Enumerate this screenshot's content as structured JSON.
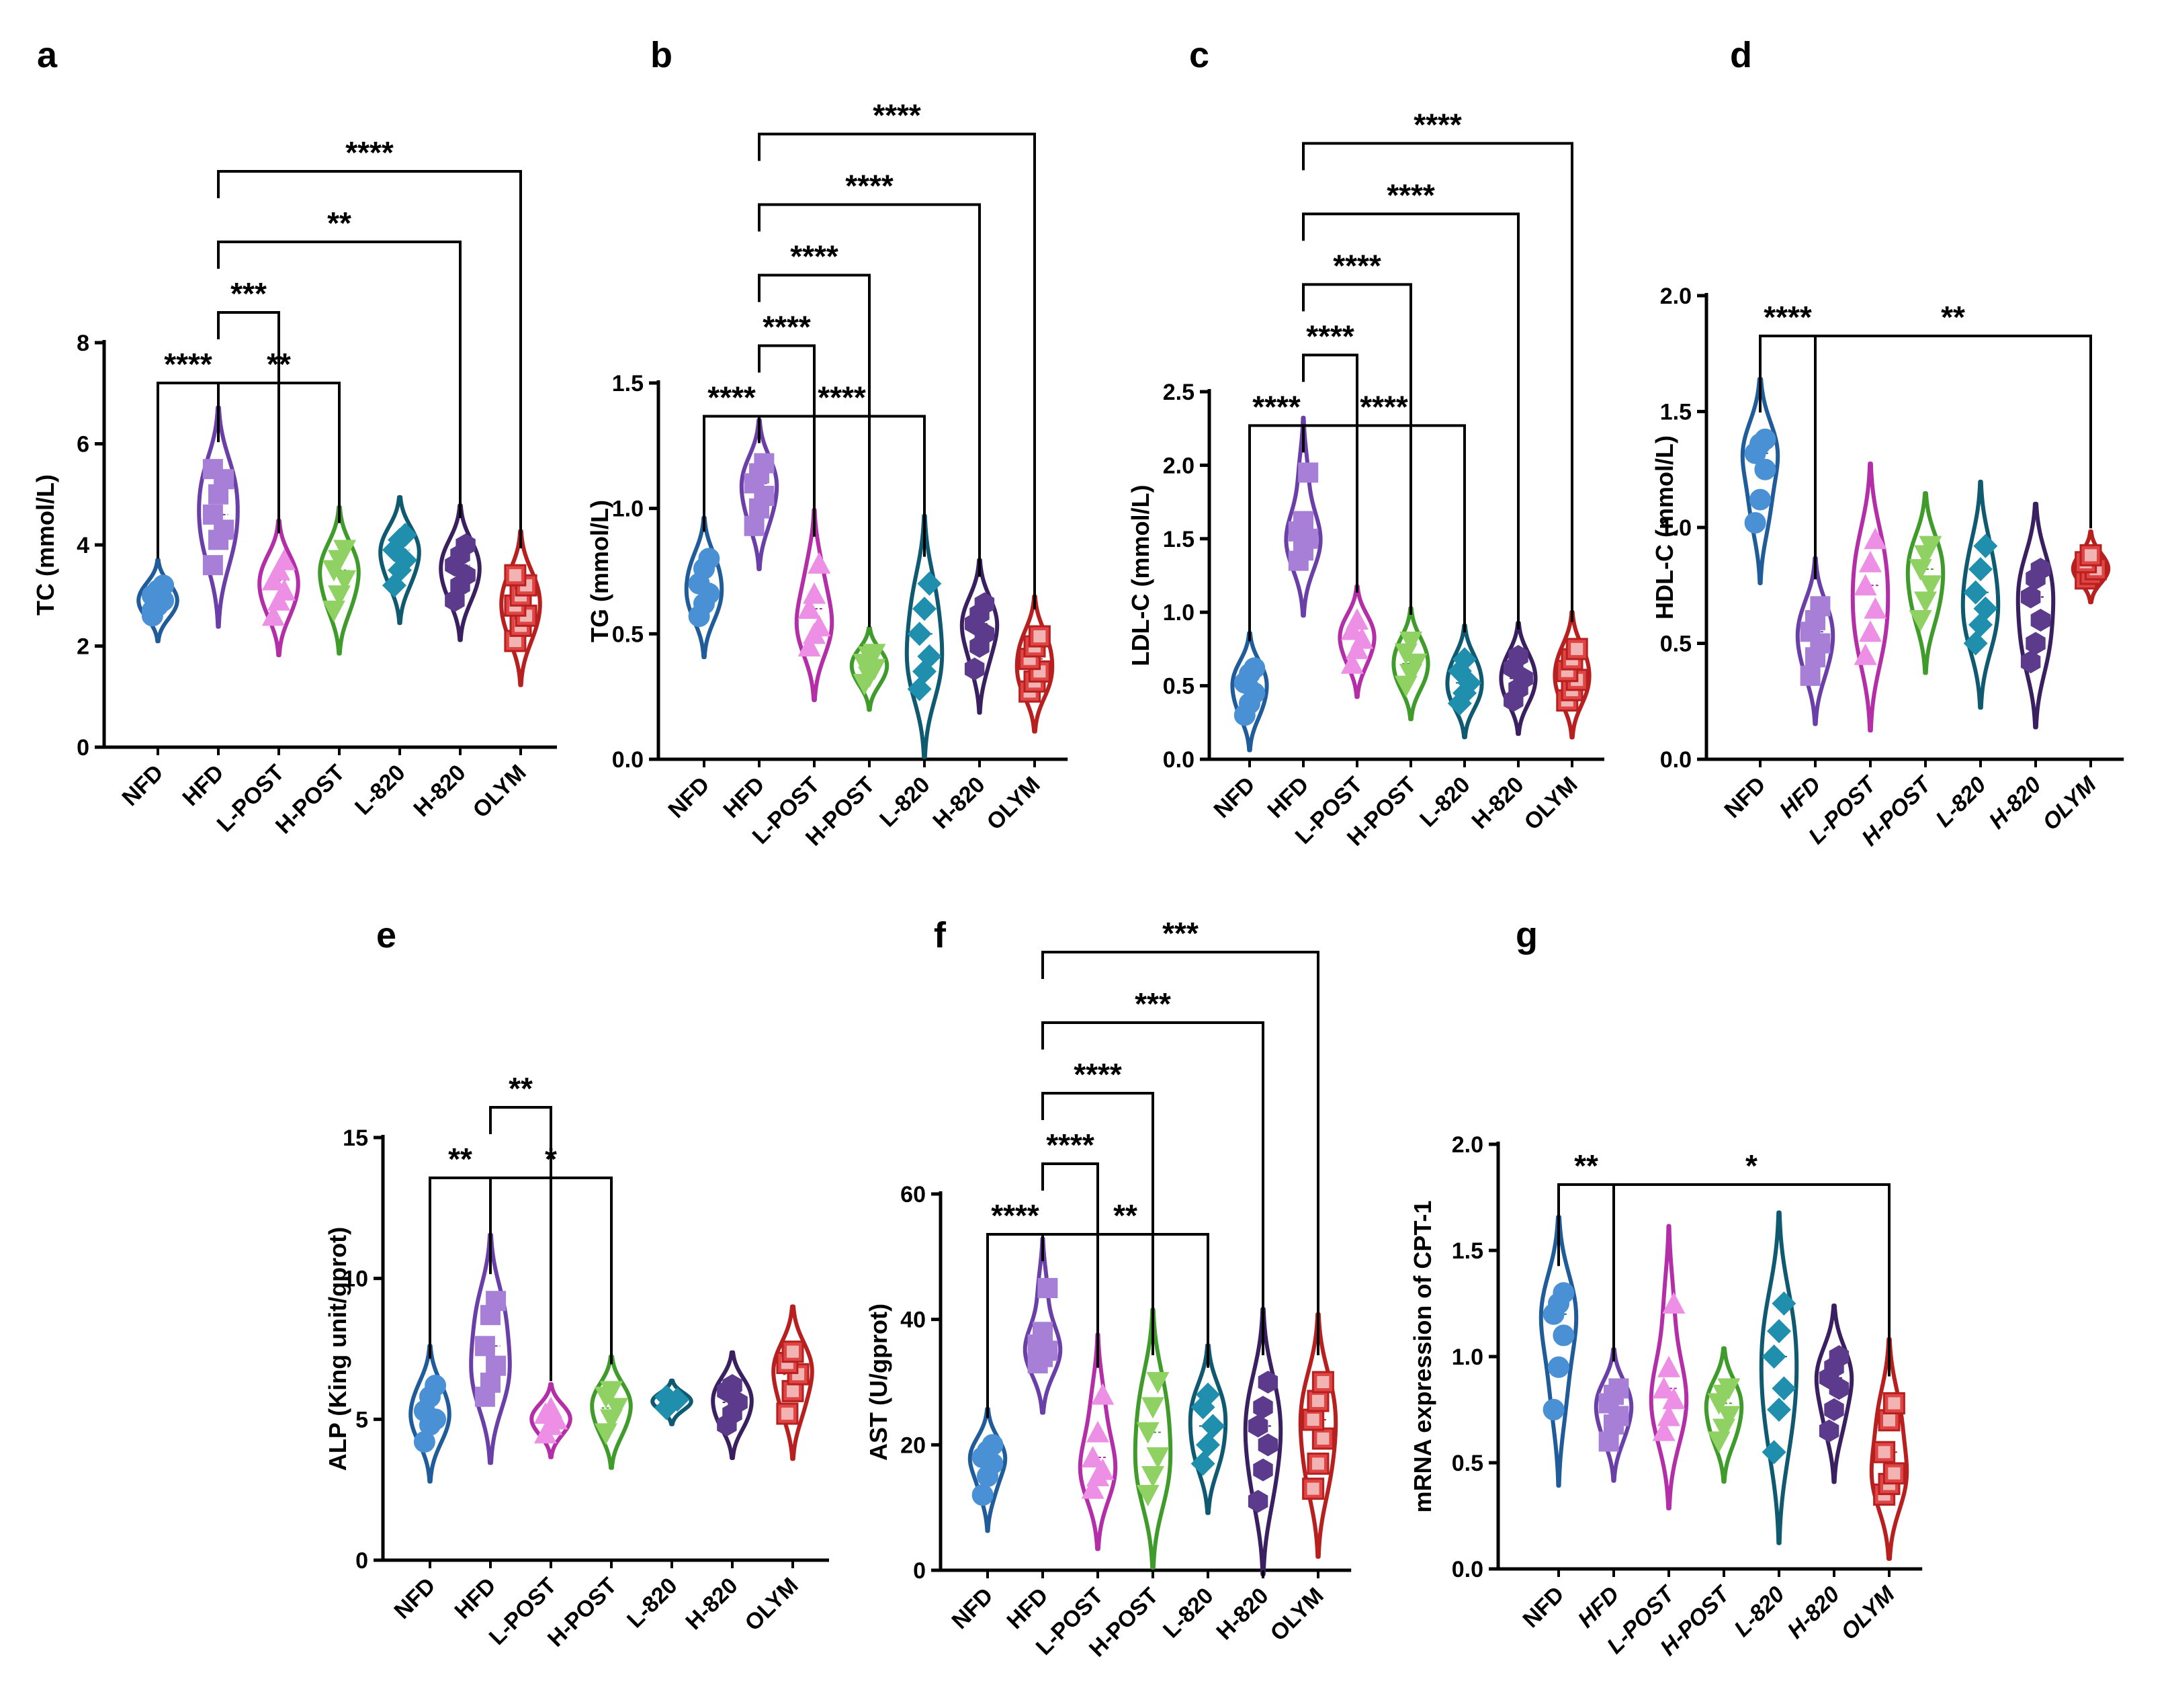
{
  "chart_data": [
    {
      "panel": "a",
      "type": "violin",
      "ylabel": "TC (mmol/L)",
      "ylim": [
        0,
        8
      ],
      "yticks": [
        0,
        2,
        4,
        6,
        8
      ],
      "tick_labels": [
        "0",
        "2",
        "4",
        "6",
        "8"
      ],
      "categories": [
        "NFD",
        "HFD",
        "L-POST",
        "H-POST",
        "L-820",
        "H-820",
        "OLYM"
      ],
      "italic_categories": false,
      "series": [
        {
          "name": "NFD",
          "values": [
            2.6,
            2.8,
            2.9,
            3.0,
            3.1,
            3.2,
            2.7
          ]
        },
        {
          "name": "HFD",
          "values": [
            3.6,
            4.1,
            4.3,
            4.6,
            5.0,
            5.3,
            5.5
          ]
        },
        {
          "name": "L-POST",
          "values": [
            2.6,
            2.9,
            3.1,
            3.3,
            3.5,
            3.7
          ]
        },
        {
          "name": "H-POST",
          "values": [
            2.7,
            3.0,
            3.3,
            3.5,
            3.7,
            3.9
          ]
        },
        {
          "name": "L-820",
          "values": [
            3.2,
            3.5,
            3.7,
            3.9,
            4.1,
            4.2
          ]
        },
        {
          "name": "H-820",
          "values": [
            2.9,
            3.2,
            3.4,
            3.6,
            3.8,
            4.0
          ]
        },
        {
          "name": "OLYM",
          "values": [
            2.1,
            2.4,
            2.6,
            2.8,
            3.0,
            3.2,
            3.4
          ]
        }
      ],
      "comparisons": [
        {
          "from": "NFD",
          "to": "HFD",
          "label": "****"
        },
        {
          "from": "HFD",
          "to": "H-POST",
          "label": "**"
        },
        {
          "from": "HFD",
          "to": "L-POST",
          "label": "***"
        },
        {
          "from": "HFD",
          "to": "H-820",
          "label": "**"
        },
        {
          "from": "HFD",
          "to": "OLYM",
          "label": "****"
        }
      ]
    },
    {
      "panel": "b",
      "type": "violin",
      "ylabel": "TG (mmol/L)",
      "ylim": [
        0,
        1.5
      ],
      "yticks": [
        0,
        0.5,
        1.0,
        1.5
      ],
      "tick_labels": [
        "0.0",
        "0.5",
        "1.0",
        "1.5"
      ],
      "categories": [
        "NFD",
        "HFD",
        "L-POST",
        "H-POST",
        "L-820",
        "H-820",
        "OLYM"
      ],
      "italic_categories": false,
      "series": [
        {
          "name": "NFD",
          "values": [
            0.57,
            0.62,
            0.66,
            0.7,
            0.76,
            0.8
          ]
        },
        {
          "name": "HFD",
          "values": [
            0.93,
            1.0,
            1.05,
            1.1,
            1.14,
            1.18
          ]
        },
        {
          "name": "L-POST",
          "values": [
            0.45,
            0.5,
            0.53,
            0.6,
            0.66,
            0.78
          ]
        },
        {
          "name": "H-POST",
          "values": [
            0.3,
            0.33,
            0.36,
            0.38,
            0.41,
            0.42
          ]
        },
        {
          "name": "L-820",
          "values": [
            0.28,
            0.35,
            0.41,
            0.5,
            0.6,
            0.7
          ]
        },
        {
          "name": "H-820",
          "values": [
            0.36,
            0.45,
            0.5,
            0.54,
            0.58,
            0.62
          ]
        },
        {
          "name": "OLYM",
          "values": [
            0.27,
            0.31,
            0.35,
            0.4,
            0.45,
            0.49
          ]
        }
      ],
      "comparisons": [
        {
          "from": "NFD",
          "to": "HFD",
          "label": "****"
        },
        {
          "from": "HFD",
          "to": "L-820",
          "label": "****"
        },
        {
          "from": "HFD",
          "to": "L-POST",
          "label": "****"
        },
        {
          "from": "HFD",
          "to": "H-POST",
          "label": "****"
        },
        {
          "from": "HFD",
          "to": "H-820",
          "label": "****"
        },
        {
          "from": "HFD",
          "to": "OLYM",
          "label": "****"
        }
      ]
    },
    {
      "panel": "c",
      "type": "violin",
      "ylabel": "LDL-C (mmol/L)",
      "ylim": [
        0,
        2.5
      ],
      "yticks": [
        0,
        0.5,
        1.0,
        1.5,
        2.0,
        2.5
      ],
      "tick_labels": [
        "0.0",
        "0.5",
        "1.0",
        "1.5",
        "2.0",
        "2.5"
      ],
      "categories": [
        "NFD",
        "HFD",
        "L-POST",
        "H-POST",
        "L-820",
        "H-820",
        "OLYM"
      ],
      "italic_categories": false,
      "series": [
        {
          "name": "NFD",
          "values": [
            0.3,
            0.38,
            0.45,
            0.52,
            0.58,
            0.62
          ]
        },
        {
          "name": "HFD",
          "values": [
            1.35,
            1.42,
            1.5,
            1.55,
            1.62,
            1.95
          ]
        },
        {
          "name": "L-POST",
          "values": [
            0.65,
            0.75,
            0.82,
            0.88,
            0.95
          ]
        },
        {
          "name": "H-POST",
          "values": [
            0.5,
            0.58,
            0.65,
            0.72,
            0.8
          ]
        },
        {
          "name": "L-820",
          "values": [
            0.38,
            0.45,
            0.52,
            0.6,
            0.68
          ]
        },
        {
          "name": "H-820",
          "values": [
            0.4,
            0.48,
            0.55,
            0.62,
            0.7
          ]
        },
        {
          "name": "OLYM",
          "values": [
            0.4,
            0.47,
            0.54,
            0.6,
            0.68,
            0.75
          ]
        }
      ],
      "comparisons": [
        {
          "from": "NFD",
          "to": "HFD",
          "label": "****"
        },
        {
          "from": "HFD",
          "to": "L-820",
          "label": "****"
        },
        {
          "from": "HFD",
          "to": "L-POST",
          "label": "****"
        },
        {
          "from": "HFD",
          "to": "H-POST",
          "label": "****"
        },
        {
          "from": "HFD",
          "to": "H-820",
          "label": "****"
        },
        {
          "from": "HFD",
          "to": "OLYM",
          "label": "****"
        }
      ]
    },
    {
      "panel": "d",
      "type": "violin",
      "ylabel": "HDL-C (mmol/L)",
      "ylim": [
        0,
        2.0
      ],
      "yticks": [
        0,
        0.5,
        1.0,
        1.5,
        2.0
      ],
      "tick_labels": [
        "0.0",
        "0.5",
        "1.0",
        "1.5",
        "2.0"
      ],
      "categories": [
        "NFD",
        "HFD",
        "L-POST",
        "H-POST",
        "L-820",
        "H-820",
        "OLYM"
      ],
      "italic_categories": true,
      "series": [
        {
          "name": "NFD",
          "values": [
            1.02,
            1.12,
            1.25,
            1.32,
            1.36,
            1.38
          ]
        },
        {
          "name": "HFD",
          "values": [
            0.36,
            0.44,
            0.5,
            0.55,
            0.6,
            0.66
          ]
        },
        {
          "name": "L-POST",
          "values": [
            0.45,
            0.55,
            0.65,
            0.75,
            0.85,
            0.95
          ]
        },
        {
          "name": "H-POST",
          "values": [
            0.6,
            0.68,
            0.75,
            0.82,
            0.88,
            0.92
          ]
        },
        {
          "name": "L-820",
          "values": [
            0.5,
            0.58,
            0.65,
            0.72,
            0.82,
            0.92
          ]
        },
        {
          "name": "H-820",
          "values": [
            0.42,
            0.5,
            0.6,
            0.7,
            0.78,
            0.82
          ]
        },
        {
          "name": "OLYM",
          "values": [
            0.78,
            0.8,
            0.82,
            0.85,
            0.88
          ]
        }
      ],
      "comparisons": [
        {
          "from": "NFD",
          "to": "HFD",
          "label": "****"
        },
        {
          "from": "HFD",
          "to": "OLYM",
          "label": "**"
        }
      ]
    },
    {
      "panel": "e",
      "type": "violin",
      "ylabel": "ALP (King unit/gprot)",
      "ylim": [
        0,
        15
      ],
      "yticks": [
        0,
        5,
        10,
        15
      ],
      "tick_labels": [
        "0",
        "5",
        "10",
        "15"
      ],
      "categories": [
        "NFD",
        "HFD",
        "L-POST",
        "H-POST",
        "L-820",
        "H-820",
        "OLYM"
      ],
      "italic_categories": false,
      "series": [
        {
          "name": "NFD",
          "values": [
            4.2,
            4.8,
            5.0,
            5.3,
            5.8,
            6.2
          ]
        },
        {
          "name": "HFD",
          "values": [
            5.8,
            6.3,
            6.9,
            7.6,
            8.7,
            9.2
          ]
        },
        {
          "name": "L-POST",
          "values": [
            4.5,
            4.8,
            5.0,
            5.2,
            5.4
          ]
        },
        {
          "name": "H-POST",
          "values": [
            4.5,
            5.0,
            5.4,
            5.8,
            6.0
          ]
        },
        {
          "name": "L-820",
          "values": [
            5.4,
            5.6,
            5.7,
            5.8
          ]
        },
        {
          "name": "H-820",
          "values": [
            4.8,
            5.2,
            5.6,
            6.0,
            6.2
          ]
        },
        {
          "name": "OLYM",
          "values": [
            5.2,
            6.0,
            6.6,
            7.0,
            7.4
          ]
        }
      ],
      "comparisons": [
        {
          "from": "NFD",
          "to": "HFD",
          "label": "**"
        },
        {
          "from": "HFD",
          "to": "H-POST",
          "label": "*"
        },
        {
          "from": "HFD",
          "to": "L-POST",
          "label": "**"
        }
      ]
    },
    {
      "panel": "f",
      "type": "violin",
      "ylabel": "AST (U/gprot)",
      "ylim": [
        0,
        60
      ],
      "yticks": [
        0,
        20,
        40,
        60
      ],
      "tick_labels": [
        "0",
        "20",
        "40",
        "60"
      ],
      "categories": [
        "NFD",
        "HFD",
        "L-POST",
        "H-POST",
        "L-820",
        "H-820",
        "OLYM"
      ],
      "italic_categories": false,
      "series": [
        {
          "name": "NFD",
          "values": [
            12,
            15,
            17,
            18,
            19,
            20
          ]
        },
        {
          "name": "HFD",
          "values": [
            33,
            34,
            35,
            36,
            38,
            45
          ]
        },
        {
          "name": "L-POST",
          "values": [
            13,
            15,
            16,
            18,
            22,
            28
          ]
        },
        {
          "name": "H-POST",
          "values": [
            12,
            15,
            18,
            22,
            26,
            30
          ]
        },
        {
          "name": "L-820",
          "values": [
            17,
            20,
            23,
            26,
            28
          ]
        },
        {
          "name": "H-820",
          "values": [
            11,
            16,
            20,
            23,
            26,
            30
          ]
        },
        {
          "name": "OLYM",
          "values": [
            13,
            17,
            21,
            24,
            27,
            30
          ]
        }
      ],
      "comparisons": [
        {
          "from": "NFD",
          "to": "HFD",
          "label": "****"
        },
        {
          "from": "HFD",
          "to": "L-820",
          "label": "**"
        },
        {
          "from": "HFD",
          "to": "L-POST",
          "label": "****"
        },
        {
          "from": "HFD",
          "to": "H-POST",
          "label": "****"
        },
        {
          "from": "HFD",
          "to": "H-820",
          "label": "***"
        },
        {
          "from": "HFD",
          "to": "OLYM",
          "label": "***"
        }
      ]
    },
    {
      "panel": "g",
      "type": "violin",
      "ylabel": "mRNA expression of CPT-1",
      "ylim": [
        0,
        2.0
      ],
      "yticks": [
        0,
        0.5,
        1.0,
        1.5,
        2.0
      ],
      "tick_labels": [
        "0.0",
        "0.5",
        "1.0",
        "1.5",
        "2.0"
      ],
      "categories": [
        "NFD",
        "HFD",
        "L-POST",
        "H-POST",
        "L-820",
        "H-820",
        "OLYM"
      ],
      "italic_categories": true,
      "series": [
        {
          "name": "NFD",
          "values": [
            0.75,
            0.95,
            1.1,
            1.2,
            1.25,
            1.3
          ]
        },
        {
          "name": "HFD",
          "values": [
            0.6,
            0.68,
            0.72,
            0.78,
            0.82,
            0.85
          ]
        },
        {
          "name": "L-POST",
          "values": [
            0.65,
            0.72,
            0.8,
            0.85,
            0.95,
            1.25
          ]
        },
        {
          "name": "H-POST",
          "values": [
            0.6,
            0.66,
            0.72,
            0.78,
            0.82,
            0.85
          ]
        },
        {
          "name": "L-820",
          "values": [
            0.55,
            0.75,
            0.85,
            1.0,
            1.12,
            1.25
          ]
        },
        {
          "name": "H-820",
          "values": [
            0.65,
            0.75,
            0.85,
            0.9,
            0.95,
            1.0
          ]
        },
        {
          "name": "OLYM",
          "values": [
            0.35,
            0.4,
            0.45,
            0.55,
            0.7,
            0.78
          ]
        }
      ],
      "comparisons": [
        {
          "from": "NFD",
          "to": "HFD",
          "label": "**"
        },
        {
          "from": "HFD",
          "to": "OLYM",
          "label": "*"
        }
      ]
    }
  ],
  "group_colors": {
    "NFD": {
      "fill": "#4a90d4",
      "line": "#1f5c99"
    },
    "HFD": {
      "fill": "#a77fd6",
      "line": "#6a3fa8"
    },
    "L-POST": {
      "fill": "#ee8fe6",
      "line": "#b42ea8"
    },
    "H-POST": {
      "fill": "#8fd163",
      "line": "#3f9b2a"
    },
    "L-820": {
      "fill": "#1f8fad",
      "line": "#0f5a70"
    },
    "H-820": {
      "fill": "#5c3a8c",
      "line": "#3a2060"
    },
    "OLYM": {
      "fill": "#e04545",
      "line": "#b81f1f"
    }
  },
  "group_markers": {
    "NFD": "circle",
    "HFD": "square",
    "L-POST": "triangle-up",
    "H-POST": "triangle-down",
    "L-820": "diamond",
    "H-820": "hexagon",
    "OLYM": "open-square"
  }
}
